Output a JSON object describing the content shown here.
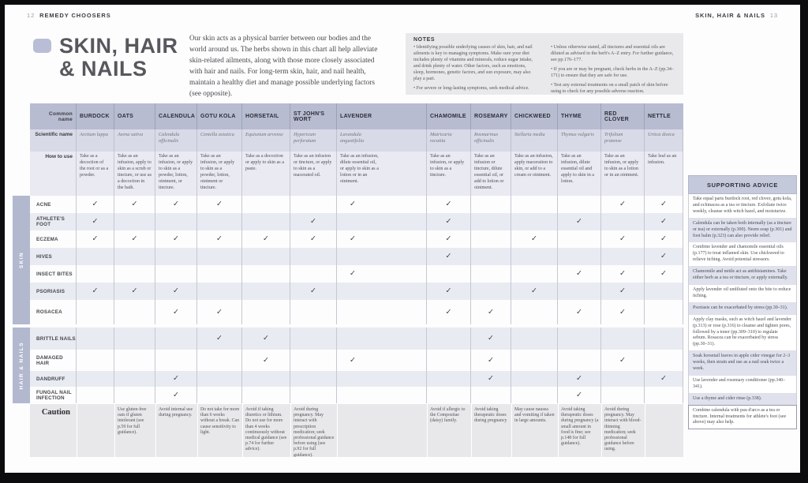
{
  "page": {
    "left_header": {
      "page_num": "12",
      "label": "REMEDY CHOOSERS"
    },
    "right_header": {
      "label": "SKIN, HAIR & NAILS",
      "page_num": "13"
    }
  },
  "title": {
    "line1": "SKIN, HAIR",
    "line2": "& NAILS"
  },
  "intro": "Our skin acts as a physical barrier between our bodies and the world around us. The herbs shown in this chart all help alleviate skin-related ailments, along with those more closely associated with hair and nails. For long-term skin, hair, and nail health, maintain a healthy diet and manage possible underlying factors (see opposite).",
  "notes": {
    "title": "NOTES",
    "col1": [
      "Identifying possible underlying causes of skin, hair, and nail ailments is key to managing symptoms. Make sure your diet includes plenty of vitamins and minerals, reduce sugar intake, and drink plenty of water. Other factors, such as emotions, sleep, hormones, genetic factors, and sun exposure, may also play a part.",
      "For severe or long-lasting symptoms, seek medical advice."
    ],
    "col2": [
      "Unless otherwise stated, all tinctures and essential oils are diluted as advised in the herb's A–Z entry. For further guidance, see pp.176–177.",
      "If you are or may be pregnant, check herbs in the A–Z (pp.34–171) to ensure that they are safe for use.",
      "Test any external treatments on a small patch of skin before using to check for any possible adverse reaction."
    ]
  },
  "table": {
    "row_labels": {
      "common": "Common name",
      "scientific": "Scientific name",
      "how": "How to use",
      "caution": "Caution"
    },
    "check_glyph": "✓",
    "supporting_advice_title": "SUPPORTING ADVICE",
    "herbs": [
      {
        "name": "BURDOCK",
        "scientific": "Arctium lappa",
        "how": "Take as a decoction of the root or as a powder.",
        "caution": ""
      },
      {
        "name": "OATS",
        "scientific": "Avena sativa",
        "how": "Take as an infusion, apply to skin as a scrub or tincture, or use as a decoction in the bath.",
        "caution": "Use gluten-free oats if gluten intolerant (see p.59 for full guidance)."
      },
      {
        "name": "CALENDULA",
        "scientific": "Calendula officinalis",
        "how": "Take as an infusion, or apply to skin as a powder, lotion, ointment, or tincture.",
        "caution": "Avoid internal use during pregnancy."
      },
      {
        "name": "GOTU KOLA",
        "scientific": "Centella asiatica",
        "how": "Take as an infusion, or apply to skin as a powder, lotion, ointment or tincture.",
        "caution": "Do not take for more than 6 weeks without a break. Can cause sensitivity to light."
      },
      {
        "name": "HORSETAIL",
        "scientific": "Equisetum arvense",
        "how": "Take as a decoction or apply to skin as a paste.",
        "caution": "Avoid if taking diuretics or lithium. Do not use for more than 4 weeks continuously without medical guidance (see p.74 for further advice)."
      },
      {
        "name": "ST JOHN'S WORT",
        "scientific": "Hypericum perforatum",
        "how": "Take as an infusion or tincture, or apply to skin as a macerated oil.",
        "caution": "Avoid during pregnancy. May interact with prescription medication; seek professional guidance before using (see p.92 for full guidance)."
      },
      {
        "name": "LAVENDER",
        "scientific": "Lavandula angustifolia",
        "how": "Take as an infusion, dilute essential oil, or apply to skin as a lotion or in an ointment.",
        "caution": ""
      },
      {
        "name": "CHAMOMILE",
        "scientific": "Matricaria recutita",
        "how": "Take as an infusion, or apply to skin as a tincture.",
        "caution": "Avoid if allergic to the Compositae (daisy) family."
      },
      {
        "name": "ROSEMARY",
        "scientific": "Rosmarinus officinalis",
        "how": "Take as an infusion or tincture, dilute essential oil, or add to lotion or ointment.",
        "caution": "Avoid taking therapeutic doses during pregnancy"
      },
      {
        "name": "CHICKWEED",
        "scientific": "Stellaria media",
        "how": "Take as an infusion, apply maceration to skin, or add to a cream or ointment.",
        "caution": "May cause nausea and vomiting if taken in large amounts."
      },
      {
        "name": "THYME",
        "scientific": "Thymus vulgaris",
        "how": "Take as an infusion, dilute essential oil and apply to skin in a lotion.",
        "caution": "Avoid taking therapeutic doses during pregnancy (a small amount in food is fine; see p.148 for full guidance)."
      },
      {
        "name": "RED CLOVER",
        "scientific": "Trifolium pratense",
        "how": "Take as an infusion, or apply to skin as a lotion or in an ointment.",
        "caution": "Avoid during pregnancy. May interact with blood-thinning medication; seek professional guidance before using."
      },
      {
        "name": "NETTLE",
        "scientific": "Urtica dioica",
        "how": "Take leaf as an infusion.",
        "caution": ""
      }
    ],
    "groups": [
      {
        "label": "SKIN",
        "rows": [
          {
            "ailment": "ACNE",
            "checks": [
              1,
              1,
              1,
              1,
              0,
              0,
              1,
              1,
              0,
              0,
              0,
              1,
              1
            ],
            "advice": "Take equal parts burdock root, red clover, gotu kola, and echinacea as a tea or tincture. Exfoliate twice weekly, cleanse with witch hazel, and moisturize."
          },
          {
            "ailment": "ATHLETE'S FOOT",
            "checks": [
              1,
              0,
              0,
              0,
              0,
              1,
              0,
              1,
              0,
              0,
              1,
              0,
              1
            ],
            "advice": "Calendula can be taken both internally (as a tincture or tea) or externally (p.300). Neem soap (p.301) and foot balm (p.323) can also provide relief."
          },
          {
            "ailment": "ECZEMA",
            "checks": [
              1,
              1,
              1,
              1,
              1,
              1,
              1,
              1,
              0,
              1,
              0,
              1,
              1
            ],
            "advice": "Combine lavender and chamomile essential oils (p.177) to treat inflamed skin. Use chickweed to relieve itching. Avoid potential stressors."
          },
          {
            "ailment": "HIVES",
            "checks": [
              0,
              0,
              0,
              0,
              0,
              0,
              0,
              1,
              0,
              0,
              0,
              0,
              1
            ],
            "advice": "Chamomile and nettle act as antihistamines. Take either herb as a tea or tincture, or apply externally."
          },
          {
            "ailment": "INSECT BITES",
            "checks": [
              0,
              0,
              0,
              0,
              0,
              0,
              1,
              0,
              0,
              0,
              1,
              1,
              1
            ],
            "advice": "Apply lavender oil undiluted onto the bite to reduce itching."
          },
          {
            "ailment": "PSORIASIS",
            "checks": [
              1,
              1,
              1,
              0,
              0,
              1,
              0,
              1,
              0,
              1,
              0,
              1,
              0
            ],
            "advice": "Psoriasis can be exacerbated by stress (pp.30–31)."
          },
          {
            "ailment": "ROSACEA",
            "checks": [
              0,
              0,
              1,
              1,
              0,
              0,
              0,
              1,
              1,
              0,
              1,
              1,
              0
            ],
            "advice": "Apply clay masks, such as witch hazel and lavender (p.313) or rose (p.316) to cleanse and tighten pores, followed by a toner (pp.309–310) to regulate sebum. Rosacea can be exacerbated by stress (pp.30–31)."
          }
        ]
      },
      {
        "label": "HAIR & NAILS",
        "rows": [
          {
            "ailment": "BRITTLE NAILS",
            "checks": [
              0,
              0,
              0,
              1,
              1,
              0,
              0,
              0,
              1,
              0,
              0,
              0,
              0
            ],
            "advice": "Soak horsetail leaves in apple cider vinegar for 2–3 weeks, then strain and use as a nail soak twice a week."
          },
          {
            "ailment": "DAMAGED HAIR",
            "checks": [
              0,
              0,
              0,
              0,
              1,
              0,
              1,
              0,
              1,
              0,
              0,
              1,
              0
            ],
            "advice": "Use lavender and rosemary conditioner (pp.340–341)."
          },
          {
            "ailment": "DANDRUFF",
            "checks": [
              0,
              0,
              1,
              0,
              0,
              0,
              0,
              0,
              1,
              0,
              1,
              0,
              1
            ],
            "advice": "Use a thyme and cider rinse (p.338)."
          },
          {
            "ailment": "FUNGAL NAIL INFECTION",
            "checks": [
              0,
              0,
              1,
              0,
              0,
              0,
              0,
              0,
              0,
              0,
              1,
              0,
              0
            ],
            "advice": "Combine calendula with pau d'arco as a tea or tincture. Internal treatments for athlete's foot (see above) may also help."
          }
        ]
      }
    ]
  },
  "colors": {
    "header_band": "#b7bcd1",
    "scientific_band": "#d8dbe7",
    "how_band": "#e9eaf2",
    "row_stripe": "#e9ebf3",
    "group_bar": "#b2b8ce",
    "notes_bg": "#e9e9eb",
    "caution_bg": "#e8e8ea",
    "advice_header_bg": "#c4c9db",
    "title_bullet": "#b9bed6",
    "frame": "#0c0c0e"
  }
}
